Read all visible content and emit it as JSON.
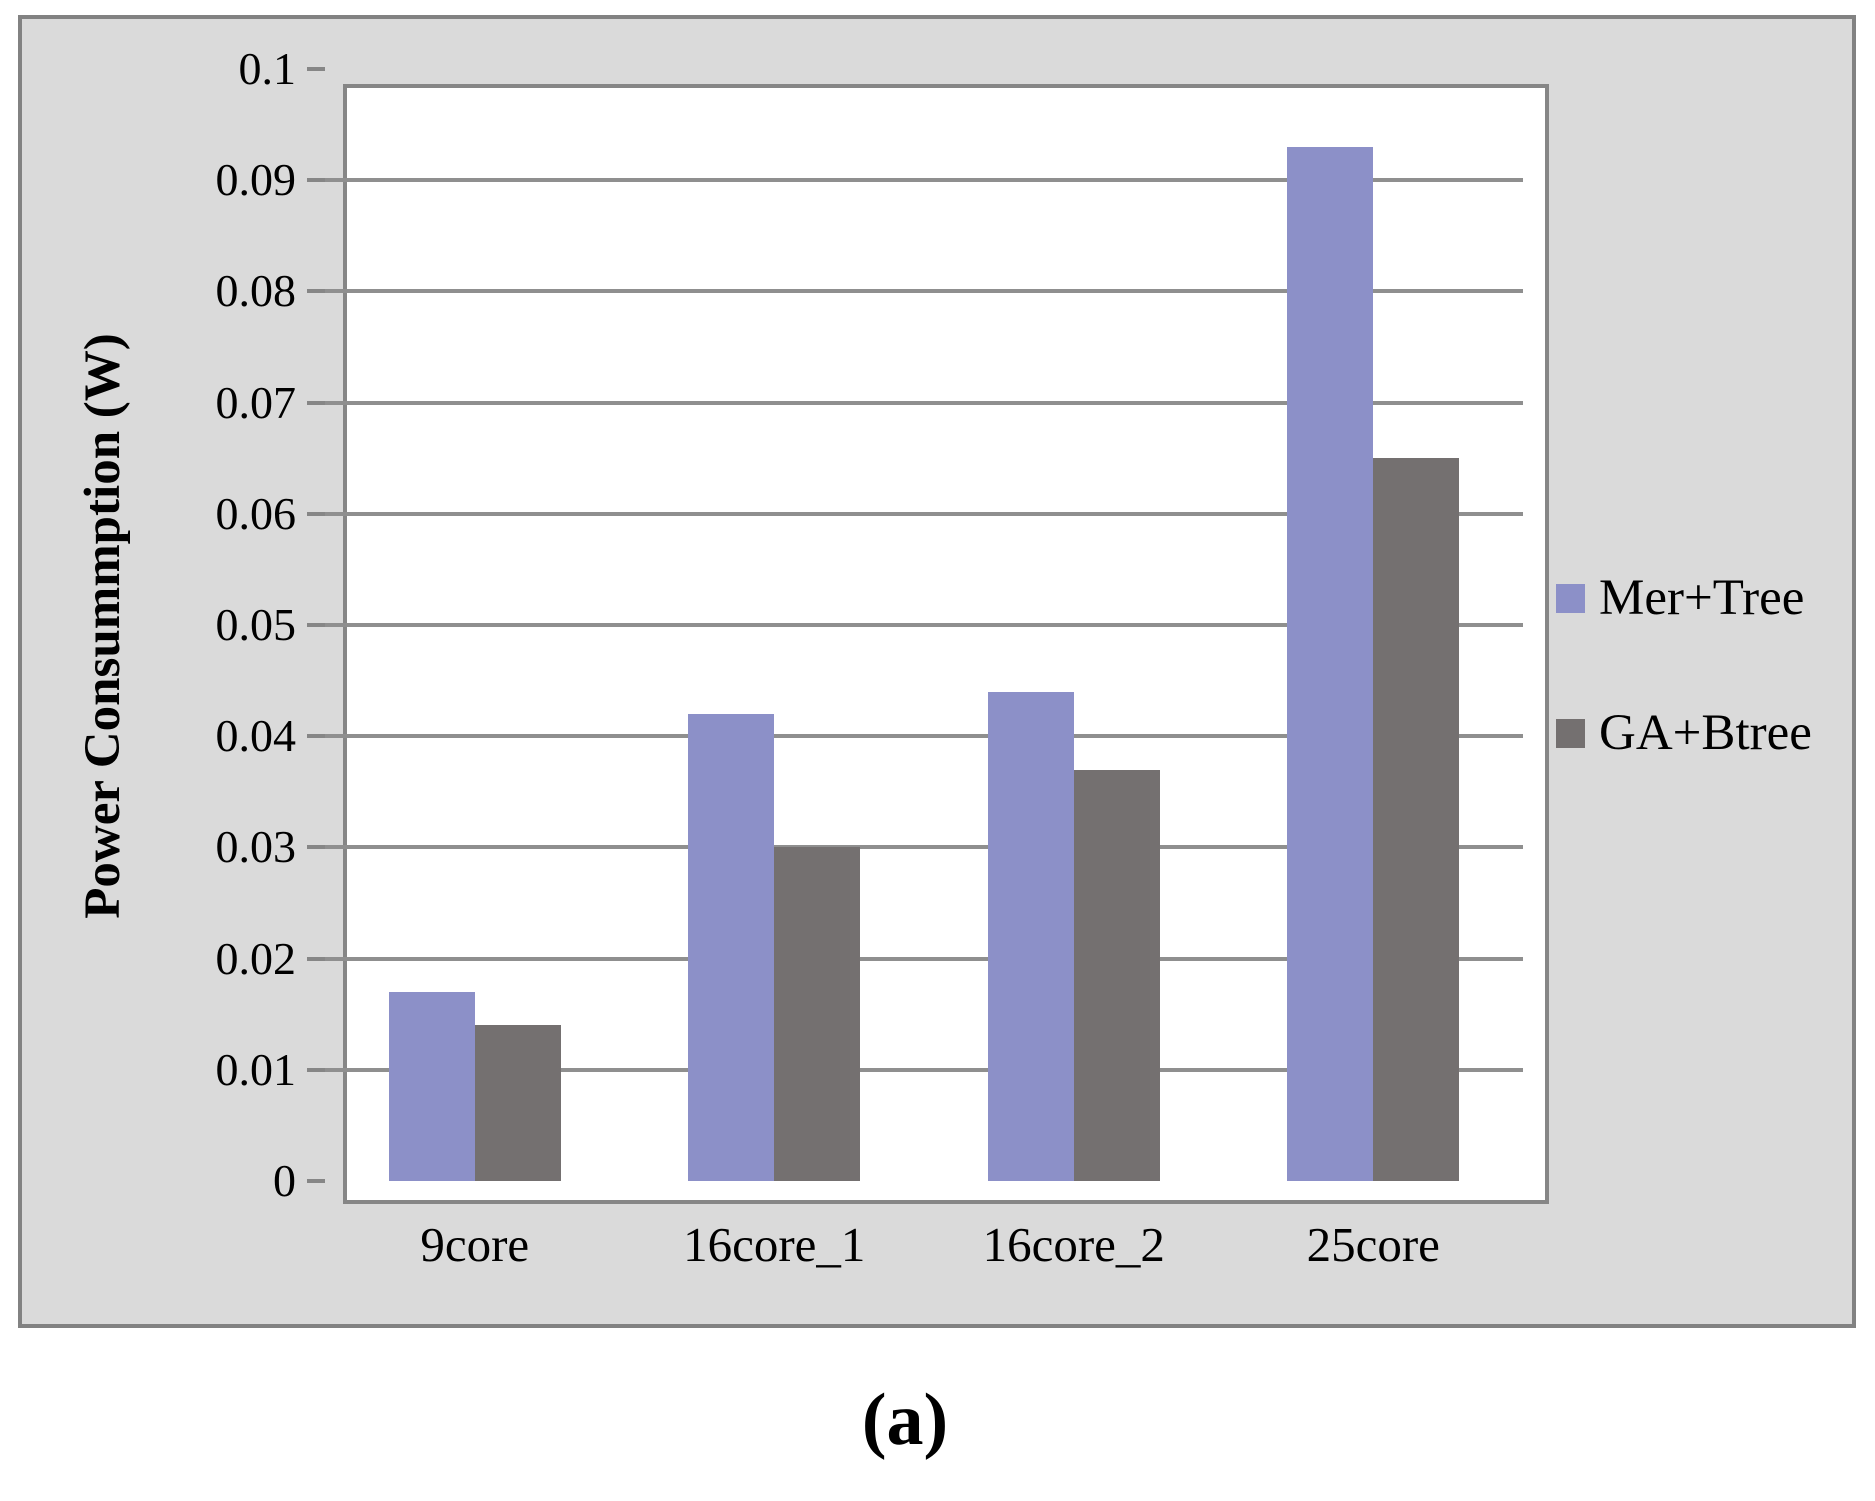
{
  "caption": "(a)",
  "chart_data": {
    "type": "bar",
    "title": "",
    "xlabel": "",
    "ylabel": "Power Consummption (W)",
    "categories": [
      "9core",
      "16core_1",
      "16core_2",
      "25core"
    ],
    "series": [
      {
        "name": "Mer+Tree",
        "color": "#8c90c8",
        "values": [
          0.017,
          0.042,
          0.044,
          0.093
        ]
      },
      {
        "name": "GA+Btree",
        "color": "#747070",
        "values": [
          0.014,
          0.03,
          0.037,
          0.065
        ]
      }
    ],
    "ylim": [
      0,
      0.1
    ],
    "yticks": [
      "0",
      "0.01",
      "0.02",
      "0.03",
      "0.04",
      "0.05",
      "0.06",
      "0.07",
      "0.08",
      "0.09",
      "0.1"
    ],
    "grid": "horizontal",
    "legend_position": "right",
    "colors": {
      "panel_background": "#dadada",
      "panel_border": "#828282",
      "plot_border": "#868686",
      "gridline": "#8f8f8f"
    }
  }
}
